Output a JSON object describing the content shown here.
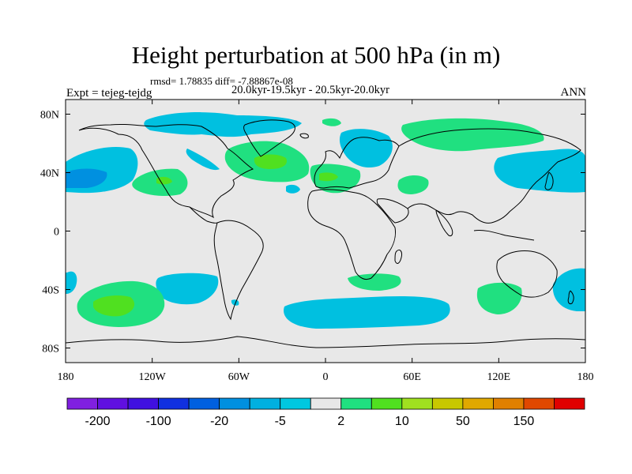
{
  "header": {
    "title": "Height perturbation at 500 hPa (in m)",
    "stats": "rmsd= 1.78835 diff= -7.88867e-08",
    "experiment": "Expt = tejeg-tejdg",
    "subtitle": "20.0kyr-19.5kyr - 20.5kyr-20.0kyr",
    "season": "ANN"
  },
  "map": {
    "projection": "cylindrical-equidistant",
    "lon_range": [
      -180,
      180
    ],
    "lat_range": [
      -90,
      90
    ],
    "background_color": "#e8e8e8",
    "y_ticks": [
      "80N",
      "40N",
      "0",
      "40S",
      "80S"
    ],
    "x_ticks": [
      "180",
      "120W",
      "60W",
      "0",
      "60E",
      "120E",
      "180"
    ],
    "colors": {
      "negative_light": "#00c0e0",
      "negative_mid": "#0090e0",
      "positive_light": "#20e080",
      "positive_mid": "#50e020"
    }
  },
  "colorbar": {
    "colors": [
      "#8020e0",
      "#6010e0",
      "#4010e0",
      "#1030e0",
      "#0060e0",
      "#0090e0",
      "#00b0e0",
      "#00c8e0",
      "#e8e8e8",
      "#20e080",
      "#50e020",
      "#a0e020",
      "#c8c800",
      "#e0a800",
      "#e08000",
      "#e04800",
      "#e00000"
    ],
    "labels": [
      "-200",
      "-100",
      "-20",
      "-5",
      "2",
      "10",
      "50",
      "150"
    ]
  }
}
